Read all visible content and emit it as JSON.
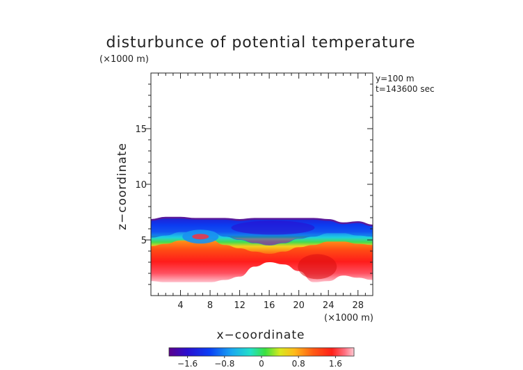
{
  "chart_data": {
    "type": "heatmap",
    "title": "disturbunce of potential temperature",
    "z_unit_label": "(×1000 m)",
    "x_unit_label": "(×1000 m)",
    "xlabel": "x−coordinate",
    "ylabel": "z−coordinate",
    "xlim": [
      0,
      30
    ],
    "ylim": [
      0,
      20
    ],
    "x_ticks": [
      {
        "value": 4,
        "label": "4"
      },
      {
        "value": 8,
        "label": "8"
      },
      {
        "value": 12,
        "label": "12"
      },
      {
        "value": 16,
        "label": "16"
      },
      {
        "value": 20,
        "label": "20"
      },
      {
        "value": 24,
        "label": "24"
      },
      {
        "value": 28,
        "label": "28"
      }
    ],
    "y_ticks": [
      {
        "value": 5,
        "label": "5"
      },
      {
        "value": 10,
        "label": "10"
      },
      {
        "value": 15,
        "label": "15"
      }
    ],
    "annotations": [
      "y=100  m",
      "t=143600 sec"
    ],
    "colorbar": {
      "min": -2.0,
      "max": 2.0,
      "ticks": [
        {
          "value": -1.6,
          "label": "−1.6"
        },
        {
          "value": -0.8,
          "label": "−0.8"
        },
        {
          "value": 0,
          "label": "0"
        },
        {
          "value": 0.8,
          "label": "0.8"
        },
        {
          "value": 1.6,
          "label": "1.6"
        }
      ]
    },
    "field": {
      "x": [
        0,
        2,
        4,
        6,
        8,
        10,
        12,
        14,
        16,
        18,
        20,
        22,
        24,
        26,
        28,
        30
      ],
      "top": [
        6.8,
        7.0,
        7.0,
        6.9,
        6.9,
        6.9,
        6.8,
        6.9,
        6.9,
        6.9,
        6.9,
        6.9,
        6.8,
        6.5,
        6.6,
        6.3
      ],
      "interface": [
        4.9,
        5.1,
        5.4,
        5.4,
        5.5,
        5.0,
        4.7,
        4.4,
        4.2,
        4.4,
        4.8,
        5.0,
        5.3,
        5.3,
        5.1,
        5.0
      ],
      "bottom": [
        1.3,
        1.2,
        1.2,
        1.2,
        1.2,
        1.4,
        1.7,
        2.6,
        3.0,
        2.8,
        2.2,
        1.2,
        1.3,
        1.8,
        1.6,
        1.4
      ]
    },
    "features": [
      {
        "kind": "cold-pocket",
        "x": 6.7,
        "z": 5.3,
        "value": -1.0
      },
      {
        "kind": "cold-core",
        "x": 16.5,
        "z": 6.1,
        "value": -1.9
      },
      {
        "kind": "warm-core",
        "x": 22.5,
        "z": 2.6,
        "value": 1.9
      }
    ]
  }
}
